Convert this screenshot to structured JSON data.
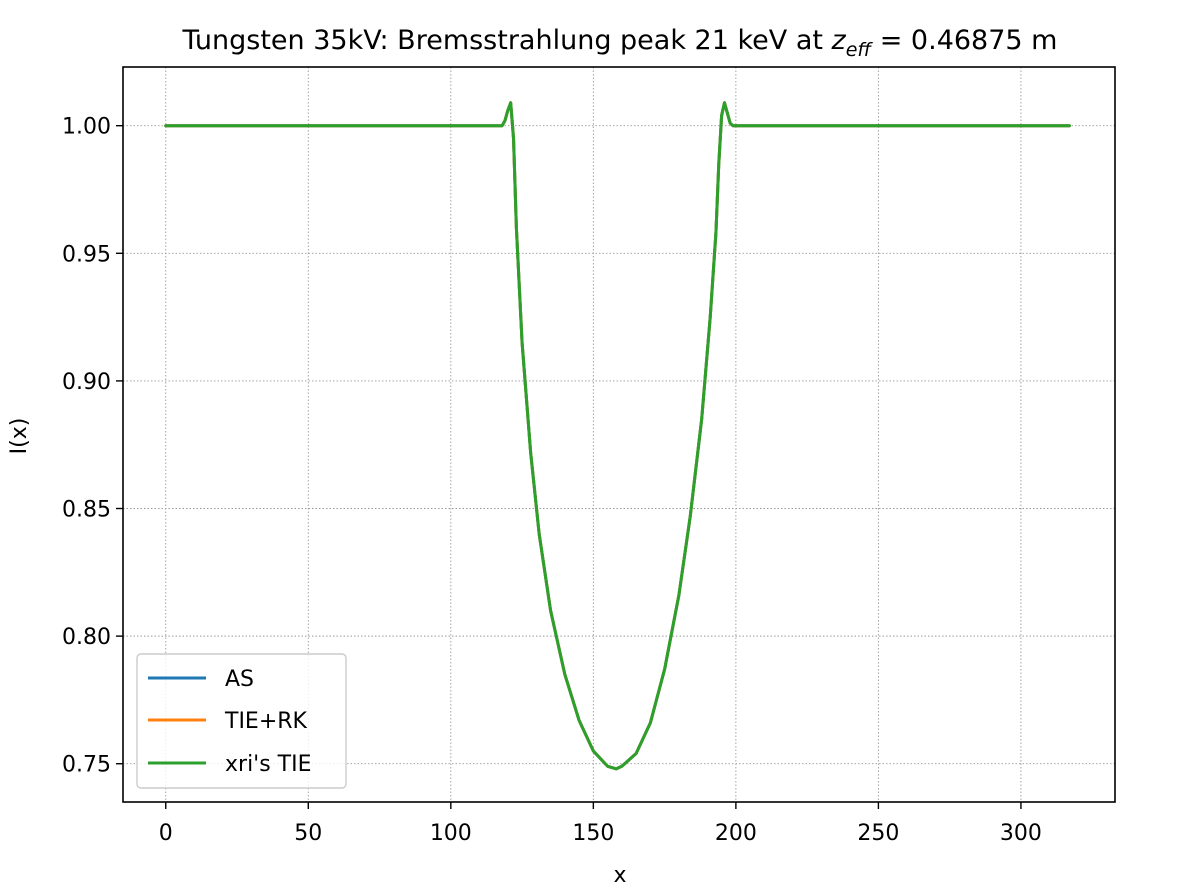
{
  "chart_data": {
    "type": "line",
    "title": {
      "prefix": "Tungsten 35kV: Bremsstrahlung peak 21 keV at ",
      "symbol": "z",
      "subscript": "eff",
      "suffix": " = 0.46875 m"
    },
    "xlabel": "x",
    "ylabel": "I(x)",
    "xlim": [
      -15,
      333
    ],
    "ylim": [
      0.735,
      1.023
    ],
    "xticks": [
      0,
      50,
      100,
      150,
      200,
      250,
      300
    ],
    "xtick_labels": [
      "0",
      "50",
      "100",
      "150",
      "200",
      "250",
      "300"
    ],
    "yticks": [
      0.75,
      0.8,
      0.85,
      0.9,
      0.95,
      1.0
    ],
    "ytick_labels": [
      "0.75",
      "0.80",
      "0.85",
      "0.90",
      "0.95",
      "1.00"
    ],
    "grid": true,
    "legend_position": "lower-left",
    "series": [
      {
        "name": "AS",
        "color": "#1f77b4",
        "x": [
          0,
          50,
          100,
          118,
          119,
          120,
          121,
          122,
          123,
          125,
          128,
          131,
          135,
          140,
          145,
          150,
          155,
          158,
          160,
          165,
          170,
          175,
          180,
          184,
          188,
          191,
          193,
          194,
          195,
          196,
          197,
          198,
          199,
          200,
          250,
          317
        ],
        "y": [
          1.0,
          1.0,
          1.0,
          1.0,
          1.002,
          1.006,
          1.009,
          0.995,
          0.96,
          0.915,
          0.872,
          0.84,
          0.81,
          0.785,
          0.767,
          0.755,
          0.749,
          0.748,
          0.749,
          0.754,
          0.766,
          0.787,
          0.816,
          0.847,
          0.885,
          0.925,
          0.958,
          0.985,
          1.004,
          1.009,
          1.005,
          1.001,
          1.0,
          1.0,
          1.0,
          1.0
        ]
      },
      {
        "name": "TIE+RK",
        "color": "#ff7f0e",
        "x": [
          0,
          50,
          100,
          118,
          119,
          120,
          121,
          122,
          123,
          125,
          128,
          131,
          135,
          140,
          145,
          150,
          155,
          158,
          160,
          165,
          170,
          175,
          180,
          184,
          188,
          191,
          193,
          194,
          195,
          196,
          197,
          198,
          199,
          200,
          250,
          317
        ],
        "y": [
          1.0,
          1.0,
          1.0,
          1.0,
          1.002,
          1.006,
          1.009,
          0.995,
          0.96,
          0.915,
          0.872,
          0.84,
          0.81,
          0.785,
          0.767,
          0.755,
          0.749,
          0.748,
          0.749,
          0.754,
          0.766,
          0.787,
          0.816,
          0.847,
          0.885,
          0.925,
          0.958,
          0.985,
          1.004,
          1.009,
          1.005,
          1.001,
          1.0,
          1.0,
          1.0,
          1.0
        ]
      },
      {
        "name": "xri's TIE",
        "color": "#2ca02c",
        "x": [
          0,
          50,
          100,
          118,
          119,
          120,
          121,
          122,
          123,
          125,
          128,
          131,
          135,
          140,
          145,
          150,
          155,
          158,
          160,
          165,
          170,
          175,
          180,
          184,
          188,
          191,
          193,
          194,
          195,
          196,
          197,
          198,
          199,
          200,
          250,
          317
        ],
        "y": [
          1.0,
          1.0,
          1.0,
          1.0,
          1.002,
          1.006,
          1.009,
          0.995,
          0.96,
          0.915,
          0.872,
          0.84,
          0.81,
          0.785,
          0.767,
          0.755,
          0.749,
          0.748,
          0.749,
          0.754,
          0.766,
          0.787,
          0.816,
          0.847,
          0.885,
          0.925,
          0.958,
          0.985,
          1.004,
          1.009,
          1.005,
          1.001,
          1.0,
          1.0,
          1.0,
          1.0
        ]
      }
    ]
  }
}
